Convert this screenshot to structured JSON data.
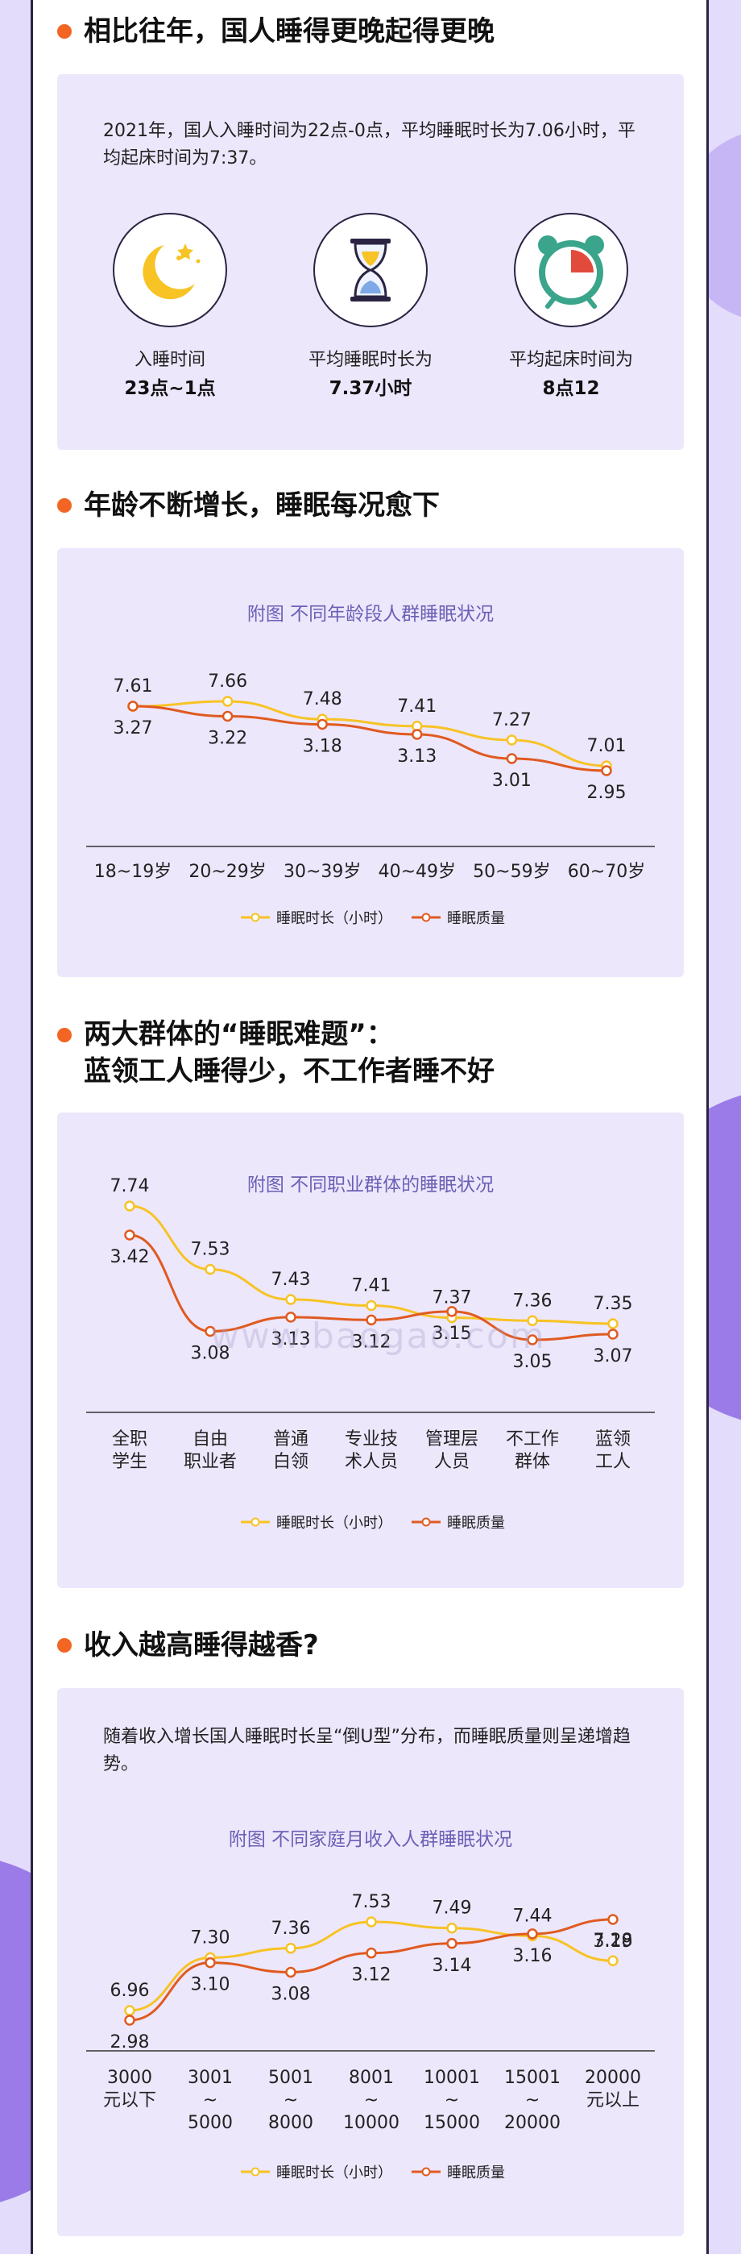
{
  "sections": {
    "s1": {
      "title": "相比往年，国人睡得更晚起得更晚",
      "intro": "2021年，国人入睡时间为22点-0点，平均睡眠时长为7.06小时，平均起床时间为7:37。",
      "stats": [
        {
          "icon": "moon-icon",
          "label": "入睡时间",
          "value": "23点~1点"
        },
        {
          "icon": "hourglass-icon",
          "label": "平均睡眠时长为",
          "value": "7.37小时"
        },
        {
          "icon": "alarm-clock-icon",
          "label": "平均起床时间为",
          "value": "8点12"
        }
      ]
    },
    "s2": {
      "title": "年龄不断增长，睡眠每况愈下"
    },
    "s3": {
      "title_line1": "两大群体的“睡眠难题”：",
      "title_line2": "蓝领工人睡得少，不工作者睡不好"
    },
    "s4": {
      "title": "收入越高睡得越香?",
      "intro": "随着收入增长国人睡眠时长呈“倒U型”分布，而睡眠质量则呈递增趋势。"
    }
  },
  "watermark": "www.baogao.com",
  "colors": {
    "duration": "#f7c325",
    "quality": "#e05a20",
    "accent": "#f26522",
    "chartTitle": "#6b60b5"
  },
  "chart_data": [
    {
      "type": "line",
      "title": "附图 不同年龄段人群睡眠状况",
      "categories": [
        "18~19岁",
        "20~29岁",
        "30~39岁",
        "40~49岁",
        "50~59岁",
        "60~70岁"
      ],
      "series": [
        {
          "name": "睡眠时长（小时）",
          "values": [
            7.61,
            7.66,
            7.48,
            7.41,
            7.27,
            7.01
          ]
        },
        {
          "name": "睡眠质量",
          "values": [
            3.27,
            3.22,
            3.18,
            3.13,
            3.01,
            2.95
          ]
        }
      ],
      "legend": "bottom"
    },
    {
      "type": "line",
      "title": "附图 不同职业群体的睡眠状况",
      "categories": [
        "全职\n学生",
        "自由\n职业者",
        "普通\n白领",
        "专业技\n术人员",
        "管理层\n人员",
        "不工作\n群体",
        "蓝领\n工人"
      ],
      "series": [
        {
          "name": "睡眠时长（小时）",
          "values": [
            7.74,
            7.53,
            7.43,
            7.41,
            7.37,
            7.36,
            7.35
          ]
        },
        {
          "name": "睡眠质量",
          "values": [
            3.42,
            3.08,
            3.13,
            3.12,
            3.15,
            3.05,
            3.07
          ]
        }
      ],
      "legend": "bottom"
    },
    {
      "type": "line",
      "title": "附图 不同家庭月收入人群睡眠状况",
      "categories": [
        "3000\n元以下",
        "3001\n~\n5000",
        "5001\n~\n8000",
        "8001\n~\n10000",
        "10001\n~\n15000",
        "15001\n~\n20000",
        "20000\n元以上"
      ],
      "series": [
        {
          "name": "睡眠时长（小时）",
          "values": [
            6.96,
            7.3,
            7.36,
            7.53,
            7.49,
            7.44,
            7.28
          ]
        },
        {
          "name": "睡眠质量",
          "values": [
            2.98,
            3.1,
            3.08,
            3.12,
            3.14,
            3.16,
            3.19
          ]
        }
      ],
      "legend": "bottom"
    }
  ]
}
